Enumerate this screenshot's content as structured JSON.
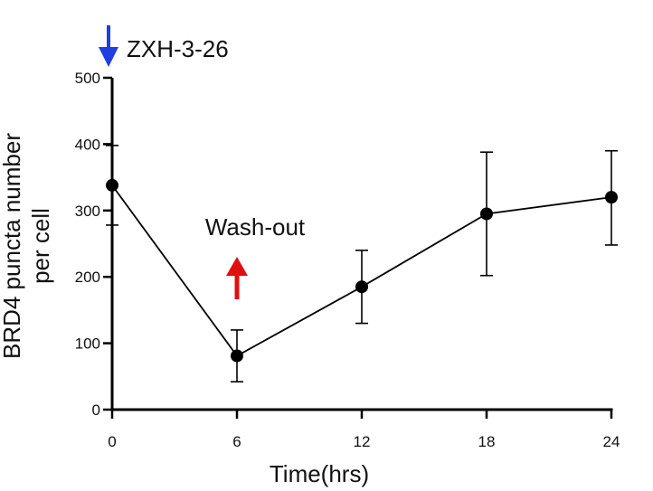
{
  "chart_data": {
    "type": "line",
    "xlabel": "Time(hrs)",
    "ylabel_line1": "BRD4 puncta number",
    "ylabel_line2": "per cell",
    "x": [
      0,
      6,
      12,
      18,
      24
    ],
    "series": [
      {
        "values": [
          338,
          81,
          185,
          295,
          320
        ],
        "err_low": [
          278,
          42,
          130,
          202,
          248
        ],
        "err_high": [
          398,
          120,
          240,
          388,
          390
        ]
      }
    ],
    "xlim": [
      0,
      24
    ],
    "ylim": [
      0,
      500
    ],
    "xticks": [
      0,
      6,
      12,
      18,
      24
    ],
    "yticks": [
      0,
      100,
      200,
      300,
      400,
      500
    ],
    "grid": false,
    "annotations": [
      {
        "text": "ZXH-3-26",
        "arrow": "down",
        "color": "#1f3fe0",
        "at_x": 0
      },
      {
        "text": "Wash-out",
        "arrow": "up",
        "color": "#e01010",
        "at_x": 6
      }
    ],
    "line_color": "#000000",
    "marker_color": "#000000"
  }
}
